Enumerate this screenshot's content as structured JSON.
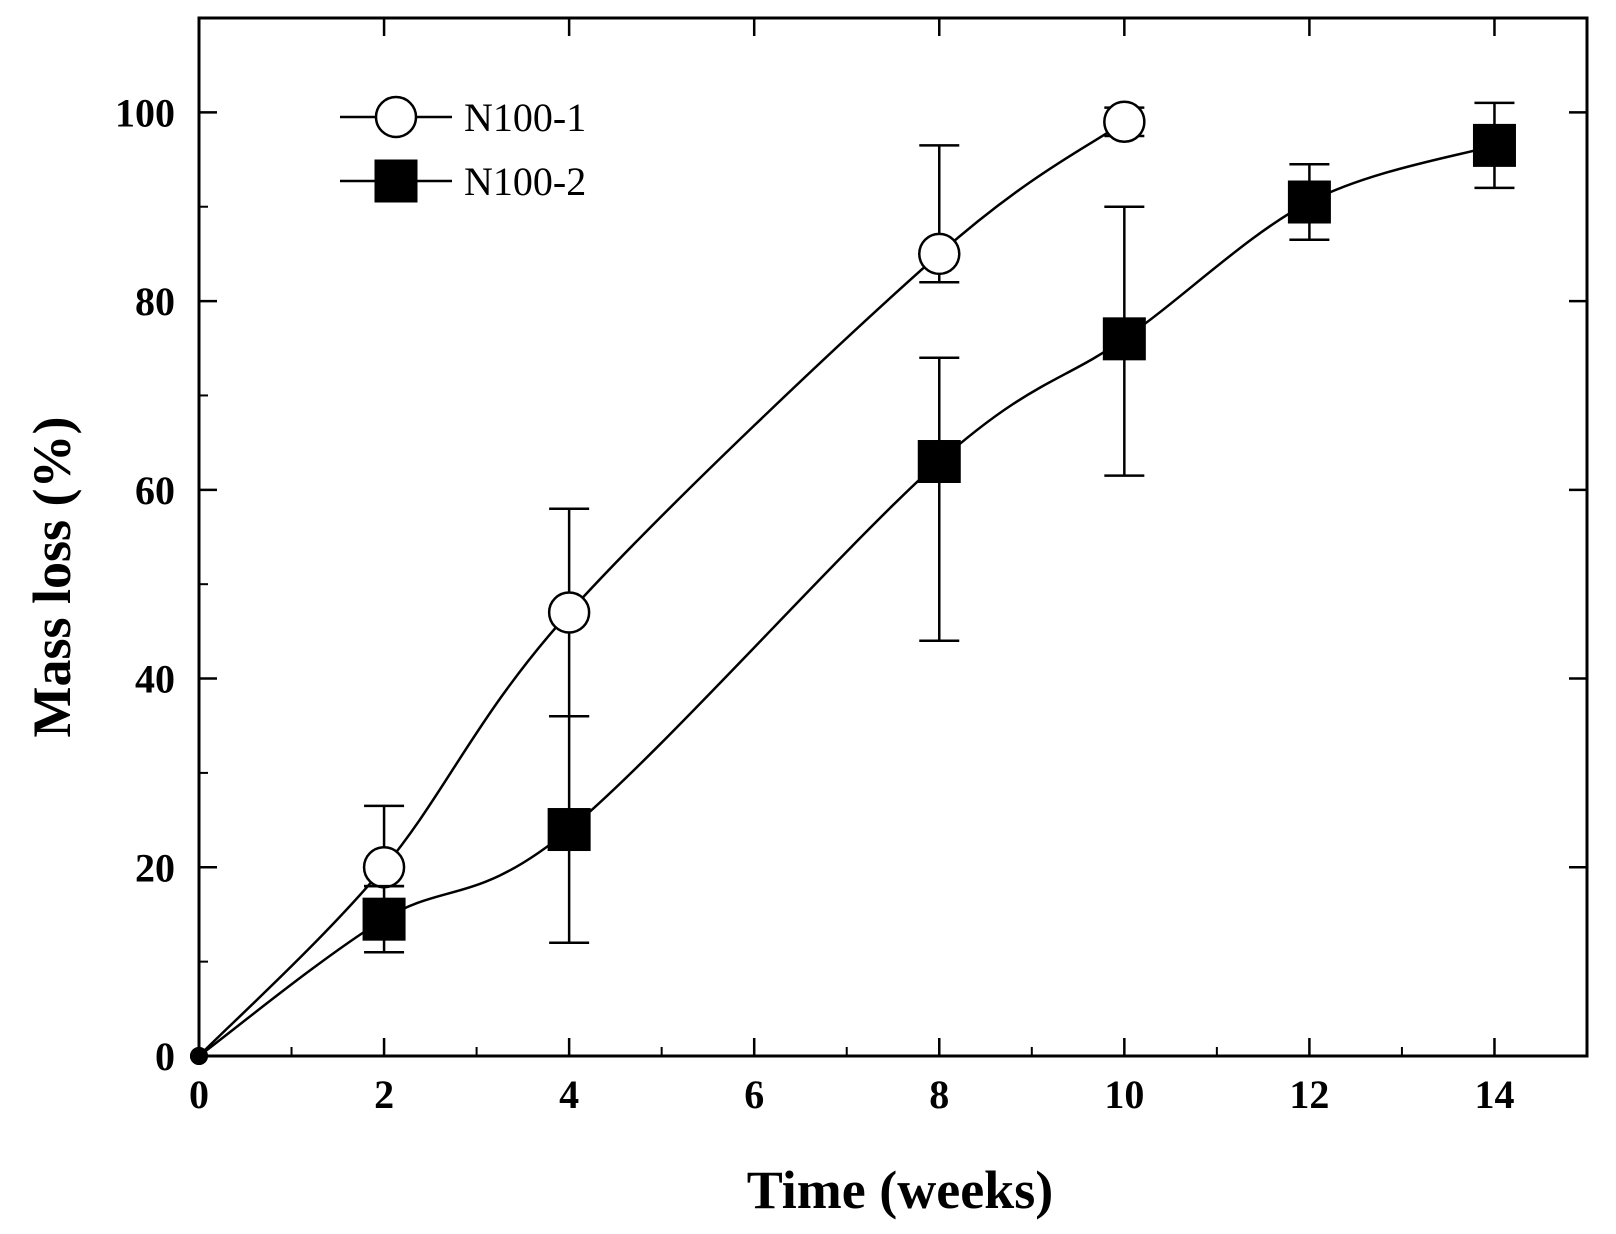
{
  "chart_data": {
    "type": "line",
    "title": "",
    "xlabel": "Time (weeks)",
    "ylabel": "Mass loss (%)",
    "xlim": [
      0,
      15
    ],
    "ylim": [
      0,
      110
    ],
    "xticks": [
      0,
      2,
      4,
      6,
      8,
      10,
      12,
      14
    ],
    "yticks": [
      0,
      20,
      40,
      60,
      80,
      100
    ],
    "grid": false,
    "legend_position": "top-left",
    "series": [
      {
        "name": "N100-1",
        "marker": "open-circle",
        "color": "#000000",
        "x": [
          0,
          2,
          4,
          8,
          10
        ],
        "y": [
          0,
          20,
          47,
          85,
          99
        ],
        "err_low": [
          0,
          2,
          11,
          3,
          1.5
        ],
        "err_high": [
          0,
          6.5,
          11,
          11.5,
          1.5
        ]
      },
      {
        "name": "N100-2",
        "marker": "filled-square",
        "color": "#000000",
        "x": [
          0,
          2,
          4,
          8,
          10,
          12,
          14
        ],
        "y": [
          0,
          14.5,
          24,
          63,
          76,
          90.5,
          96.5
        ],
        "err_low": [
          0,
          3.5,
          12,
          19,
          14.5,
          4,
          4.5
        ],
        "err_high": [
          0,
          3.5,
          12,
          11,
          14,
          4,
          4.5
        ]
      }
    ]
  }
}
